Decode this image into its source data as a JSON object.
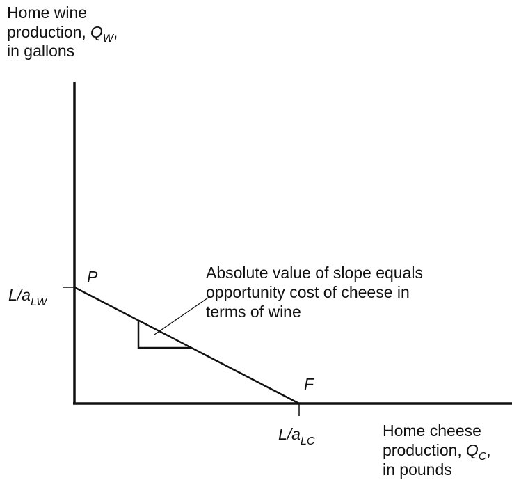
{
  "y_axis_label": {
    "line1": "Home wine",
    "line2": "production,",
    "symbol": "Q",
    "subscript": "W",
    "line2_end": ",",
    "line3": "in gallons"
  },
  "x_axis_label": {
    "line1": "Home cheese",
    "line2": "production,",
    "symbol": "Q",
    "subscript": "C",
    "line2_end": ",",
    "line3": "in pounds"
  },
  "y_intercept_label": {
    "base": "L/a",
    "subscript": "LW"
  },
  "x_intercept_label": {
    "base": "L/a",
    "subscript": "LC"
  },
  "points": {
    "P": "P",
    "F": "F"
  },
  "annotation": [
    "Absolute value of slope equals",
    "opportunity cost of cheese in",
    "terms of wine"
  ]
}
